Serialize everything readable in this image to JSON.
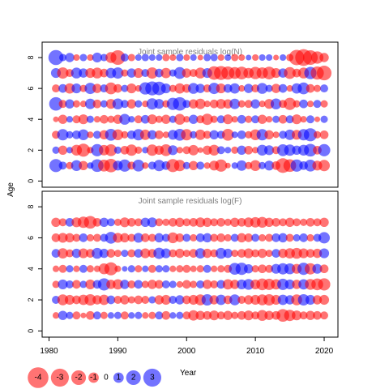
{
  "chart_data": [
    {
      "type": "scatter",
      "subtype": "bubble",
      "title": "Joint sample residuals log(N)",
      "ylabel": "Age",
      "xlim": [
        1979,
        2022
      ],
      "ylim": [
        -0.4,
        9
      ],
      "y_ticks": [
        0,
        2,
        4,
        6,
        8
      ],
      "ages": [
        1,
        2,
        3,
        4,
        5,
        6,
        7,
        8
      ],
      "years": [
        1981,
        2020
      ],
      "residuals": [
        [
          1.6,
          0.6,
          -0.5,
          1.1,
          -0.8,
          0.4,
          1.5,
          -1.3,
          -1.7,
          0.9,
          1.4,
          -0.6,
          1.3,
          -0.4,
          0.6,
          1.2,
          0.7,
          -1.6,
          -1.2,
          0.5,
          -0.8,
          0.6,
          -0.4,
          -0.9,
          -1.4,
          -0.3,
          0.4,
          1.0,
          -0.5,
          -1.1,
          0.5,
          0.9,
          -0.7,
          -2.0,
          -1.5,
          1.4,
          0.7,
          1.3,
          -0.9,
          -1.2
        ],
        [
          0.5,
          -0.8,
          0.4,
          -1.1,
          -1.6,
          -0.4,
          1.4,
          -1.0,
          -1.3,
          0.5,
          -0.7,
          -1.2,
          -0.5,
          0.4,
          -1.2,
          -0.8,
          -1.3,
          0.9,
          -0.4,
          -0.6,
          -1.0,
          -0.3,
          -0.8,
          -1.1,
          0.6,
          0.4,
          -0.5,
          0.8,
          -0.7,
          -0.4,
          1.1,
          0.9,
          -0.6,
          1.3,
          1.2,
          0.8,
          1.1,
          1.5,
          -0.7,
          1.4
        ],
        [
          -0.6,
          1.2,
          0.5,
          0.7,
          1.1,
          -0.4,
          0.6,
          -0.8,
          1.3,
          -1.1,
          -0.5,
          0.7,
          1.2,
          -1.0,
          0.8,
          -0.7,
          -0.4,
          0.9,
          1.3,
          -1.2,
          0.5,
          -1.0,
          -0.6,
          0.8,
          0.6,
          -1.3,
          0.4,
          0.7,
          -0.5,
          -1.1,
          1.2,
          -0.8,
          -0.4,
          0.6,
          1.0,
          -0.9,
          1.2,
          1.6,
          -0.5,
          -0.7
        ],
        [
          -0.3,
          -0.8,
          0.4,
          -0.6,
          -0.9,
          0.5,
          -0.4,
          -0.7,
          -0.5,
          -0.8,
          1.1,
          0.4,
          -0.6,
          0.7,
          -0.9,
          -0.5,
          -0.8,
          0.5,
          -1.1,
          -0.4,
          0.8,
          -0.6,
          -1.2,
          -0.5,
          0.6,
          -0.9,
          -0.4,
          0.7,
          -0.5,
          0.6,
          -0.8,
          -0.4,
          0.5,
          -0.7,
          0.6,
          -0.9,
          -0.4,
          0.6,
          -0.3,
          0.5
        ],
        [
          1.7,
          -0.6,
          0.8,
          -0.5,
          -0.4,
          1.0,
          -0.7,
          0.5,
          -0.9,
          1.1,
          0.6,
          -0.8,
          0.5,
          -0.4,
          1.2,
          0.9,
          -0.5,
          1.4,
          1.7,
          0.6,
          -0.8,
          -1.0,
          -0.4,
          -0.7,
          -0.9,
          -0.8,
          1.0,
          -0.5,
          -0.6,
          0.8,
          -0.4,
          -0.9,
          1.1,
          -0.6,
          -1.4,
          -0.5,
          0.7,
          -0.4,
          0.6,
          -0.5
        ],
        [
          -0.6,
          0.7,
          -1.0,
          0.9,
          -0.5,
          1.2,
          -0.8,
          0.6,
          -1.3,
          -0.7,
          0.5,
          -0.9,
          -0.4,
          1.4,
          1.8,
          1.7,
          0.9,
          -0.5,
          -1.0,
          -0.7,
          1.1,
          0.8,
          -0.6,
          1.2,
          -0.9,
          0.7,
          1.0,
          -0.4,
          0.8,
          -0.6,
          1.1,
          0.5,
          -0.8,
          0.7,
          -0.4,
          1.0,
          1.3,
          -0.7,
          -0.5,
          0.6
        ],
        [
          0.9,
          -1.2,
          -0.6,
          1.1,
          0.8,
          -0.9,
          -1.1,
          -0.7,
          1.0,
          1.2,
          -0.5,
          0.8,
          -0.9,
          0.6,
          -1.2,
          0.7,
          -1.0,
          0.5,
          1.3,
          -0.8,
          -0.6,
          -1.1,
          0.9,
          -1.7,
          -1.8,
          -1.6,
          -1.3,
          -1.5,
          -1.0,
          -1.4,
          -1.2,
          -1.5,
          -0.9,
          0.8,
          -1.3,
          -0.7,
          -1.1,
          1.4,
          -1.6,
          -2.0
        ],
        [
          2.1,
          0.5,
          0.8,
          -0.4,
          0.5,
          -0.4,
          0.9,
          0.5,
          -1.1,
          -2.0,
          0.6,
          -0.5,
          0.4,
          0.5,
          0.4,
          0.4,
          -0.5,
          -0.4,
          0.5,
          -0.4,
          0.4,
          -0.3,
          0.5,
          0.5,
          -0.4,
          0.4,
          -0.5,
          -0.4,
          0.3,
          -0.4,
          0.4,
          0.4,
          -0.3,
          0.4,
          -0.5,
          -2.2,
          -2.6,
          -2.0,
          -1.4,
          -0.8
        ]
      ]
    },
    {
      "type": "scatter",
      "subtype": "bubble",
      "title": "Joint sample residuals log(F)",
      "xlabel": "Year",
      "ylabel": "Age",
      "xlim": [
        1979,
        2022
      ],
      "ylim": [
        -0.4,
        9
      ],
      "x_ticks": [
        1980,
        1990,
        2000,
        2010,
        2020
      ],
      "y_ticks": [
        0,
        2,
        4,
        6,
        8
      ],
      "ages": [
        1,
        2,
        3,
        4,
        5,
        6,
        7
      ],
      "years": [
        1981,
        2020
      ],
      "residuals": [
        [
          -0.4,
          0.8,
          0.5,
          -0.6,
          -0.3,
          -0.7,
          0.6,
          -0.5,
          0.4,
          0.5,
          -0.6,
          0.4,
          0.5,
          -0.4,
          -0.5,
          0.6,
          -0.7,
          0.4,
          0.5,
          -0.6,
          -1.0,
          -0.8,
          -0.7,
          -0.9,
          -0.6,
          -0.8,
          -0.5,
          -0.7,
          -0.9,
          -0.6,
          -1.1,
          -0.8,
          -0.7,
          -1.5,
          -1.2,
          -0.9,
          -0.6,
          -0.8,
          -0.7,
          -0.6
        ],
        [
          0.6,
          -1.1,
          -0.9,
          -0.7,
          -1.0,
          -1.2,
          -0.8,
          -1.0,
          0.7,
          -0.6,
          -0.8,
          -0.5,
          -0.7,
          -0.6,
          0.5,
          -0.8,
          -0.9,
          0.6,
          0.8,
          -0.7,
          -0.9,
          -1.1,
          1.2,
          -0.8,
          1.0,
          -0.7,
          1.1,
          -0.6,
          -0.8,
          -0.9,
          -1.1,
          -1.2,
          -0.9,
          1.0,
          0.8,
          -1.1,
          1.2,
          0.9,
          -0.8,
          -0.9
        ],
        [
          -0.5,
          0.9,
          0.6,
          -0.7,
          0.5,
          -0.9,
          0.7,
          1.4,
          -0.8,
          -1.0,
          0.8,
          -0.6,
          0.7,
          -0.5,
          -0.8,
          -0.7,
          0.6,
          0.5,
          -0.4,
          -0.7,
          -0.5,
          0.6,
          -0.8,
          -0.6,
          0.7,
          -1.0,
          -0.8,
          0.9,
          1.1,
          -0.9,
          -1.3,
          -1.2,
          -1.0,
          1.2,
          0.9,
          -0.8,
          1.0,
          -1.1,
          -1.3,
          -1.4
        ],
        [
          -0.4,
          -0.6,
          0.5,
          -0.4,
          0.6,
          -0.5,
          -0.4,
          -1.1,
          -1.6,
          -0.4,
          0.3,
          0.5,
          -0.5,
          0.4,
          -0.6,
          0.5,
          0.5,
          -0.4,
          -0.5,
          -0.6,
          -0.4,
          -0.5,
          0.6,
          -0.4,
          -0.5,
          -0.6,
          1.3,
          1.4,
          0.8,
          -0.5,
          -0.7,
          -0.6,
          0.9,
          1.2,
          1.1,
          -0.9,
          1.4,
          -1.2,
          0.9,
          -0.7
        ],
        [
          0.7,
          -1.0,
          -0.6,
          0.8,
          -0.9,
          -0.7,
          1.1,
          0.8,
          -0.7,
          -0.5,
          0.5,
          -0.6,
          0.7,
          -0.9,
          -0.7,
          1.2,
          0.9,
          -0.6,
          -0.8,
          -0.5,
          -0.7,
          1.0,
          -0.8,
          -0.6,
          1.1,
          0.8,
          -0.5,
          -0.7,
          -0.9,
          -0.6,
          -0.8,
          -0.5,
          0.7,
          -0.8,
          -1.0,
          -1.1,
          -0.9,
          -0.7,
          -0.8,
          0.9
        ],
        [
          -0.7,
          -0.9,
          -0.8,
          -0.6,
          0.7,
          -0.5,
          -0.6,
          0.6,
          1.3,
          -0.9,
          -0.8,
          -0.6,
          0.9,
          -0.7,
          -0.6,
          0.8,
          0.6,
          -1.1,
          -0.7,
          0.6,
          -0.5,
          0.7,
          0.8,
          -0.6,
          -0.7,
          -0.5,
          0.6,
          -0.8,
          -0.7,
          0.6,
          -0.5,
          -0.6,
          0.7,
          0.8,
          -0.6,
          0.5,
          0.7,
          -0.5,
          0.6,
          1.2
        ],
        [
          -0.8,
          -0.6,
          0.7,
          -0.9,
          -1.2,
          -1.5,
          -0.7,
          0.8,
          0.6,
          -0.5,
          -0.9,
          -0.7,
          -0.6,
          0.8,
          0.9,
          -0.6,
          -0.5,
          -0.7,
          -0.8,
          -0.6,
          -0.7,
          -0.9,
          -0.8,
          -0.6,
          -0.7,
          -0.5,
          -0.8,
          -0.7,
          -0.9,
          -1.0,
          -1.1,
          -0.8,
          -0.7,
          -0.6,
          -0.8,
          -0.6,
          -0.5,
          -0.7,
          -0.6,
          -0.8
        ]
      ]
    }
  ],
  "legend": {
    "title": "Year",
    "values": [
      -4,
      -3,
      -2,
      -1,
      0,
      1,
      2,
      3
    ]
  },
  "colors": {
    "negative": "#ff0000",
    "positive": "#0000ff",
    "bubble_opacity": 0.55,
    "axis": "#000000",
    "title_text": "#7f7f7f"
  }
}
